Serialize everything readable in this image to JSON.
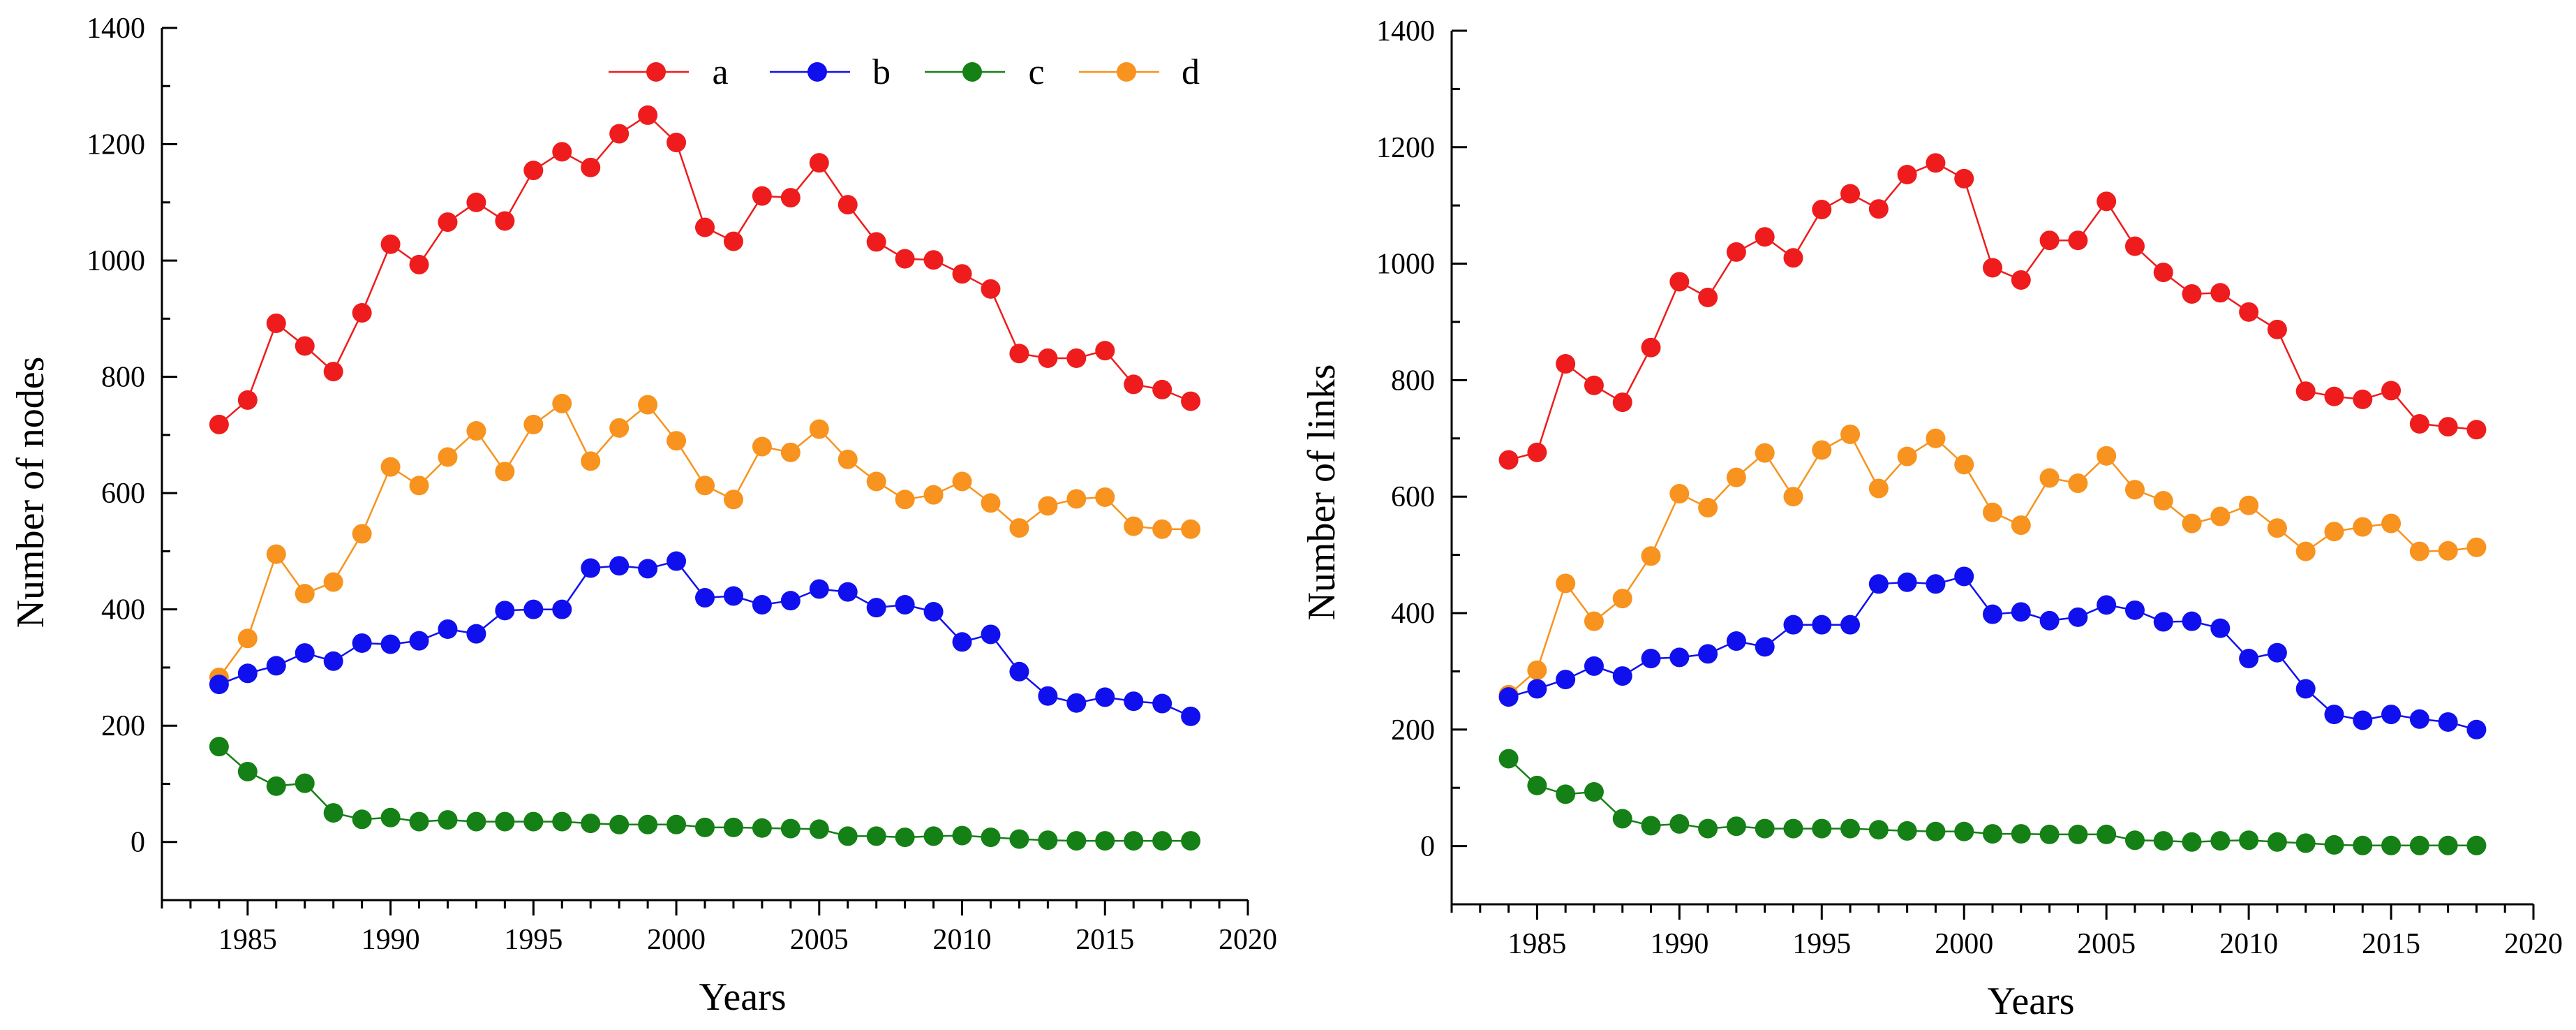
{
  "colors": {
    "a": "#ee1c1c",
    "b": "#1010ee",
    "c": "#158015",
    "d": "#f7931e",
    "axis": "#000000"
  },
  "chart_data": [
    {
      "type": "line",
      "xlabel": "Years",
      "ylabel": "Number of nodes",
      "xlim": [
        1982,
        2020
      ],
      "ylim": [
        -100,
        1400
      ],
      "xticks": [
        1985,
        1990,
        1995,
        2000,
        2005,
        2010,
        2015,
        2020
      ],
      "yticks": [
        0,
        200,
        400,
        600,
        800,
        1000,
        1200,
        1400
      ],
      "legend": {
        "position": "top-right",
        "entries": [
          "a",
          "b",
          "c",
          "d"
        ]
      },
      "x": [
        1984,
        1985,
        1986,
        1987,
        1988,
        1989,
        1990,
        1991,
        1992,
        1993,
        1994,
        1995,
        1996,
        1997,
        1998,
        1999,
        2000,
        2001,
        2002,
        2003,
        2004,
        2005,
        2006,
        2007,
        2008,
        2009,
        2010,
        2011,
        2012,
        2013,
        2014,
        2015,
        2016,
        2017,
        2018
      ],
      "series": [
        {
          "name": "a",
          "values": [
            718,
            760,
            892,
            853,
            809,
            910,
            1028,
            993,
            1066,
            1100,
            1068,
            1155,
            1187,
            1160,
            1218,
            1250,
            1203,
            1057,
            1033,
            1111,
            1108,
            1168,
            1096,
            1032,
            1003,
            1001,
            977,
            951,
            840,
            832,
            832,
            845,
            787,
            778,
            758
          ]
        },
        {
          "name": "b",
          "values": [
            271,
            290,
            303,
            325,
            311,
            342,
            340,
            346,
            366,
            358,
            398,
            400,
            400,
            471,
            475,
            470,
            483,
            420,
            423,
            408,
            415,
            435,
            430,
            403,
            408,
            396,
            344,
            357,
            293,
            251,
            239,
            249,
            242,
            238,
            216
          ]
        },
        {
          "name": "c",
          "values": [
            164,
            121,
            96,
            101,
            50,
            39,
            42,
            35,
            38,
            35,
            35,
            35,
            35,
            32,
            30,
            30,
            30,
            25,
            25,
            24,
            23,
            22,
            10,
            10,
            8,
            10,
            11,
            8,
            5,
            3,
            2,
            2,
            2,
            2,
            2
          ]
        },
        {
          "name": "d",
          "values": [
            283,
            350,
            495,
            427,
            447,
            530,
            645,
            613,
            662,
            707,
            637,
            718,
            754,
            655,
            712,
            752,
            690,
            613,
            589,
            680,
            670,
            710,
            658,
            620,
            589,
            597,
            620,
            583,
            540,
            578,
            590,
            593,
            543,
            538,
            538
          ]
        }
      ]
    },
    {
      "type": "line",
      "xlabel": "Years",
      "ylabel": "Number of links",
      "xlim": [
        1982,
        2020
      ],
      "ylim": [
        -100,
        1400
      ],
      "xticks": [
        1985,
        1990,
        1995,
        2000,
        2005,
        2010,
        2015,
        2020
      ],
      "yticks": [
        0,
        200,
        400,
        600,
        800,
        1000,
        1200,
        1400
      ],
      "x": [
        1984,
        1985,
        1986,
        1987,
        1988,
        1989,
        1990,
        1991,
        1992,
        1993,
        1994,
        1995,
        1996,
        1997,
        1998,
        1999,
        2000,
        2001,
        2002,
        2003,
        2004,
        2005,
        2006,
        2007,
        2008,
        2009,
        2010,
        2011,
        2012,
        2013,
        2014,
        2015,
        2016,
        2017,
        2018
      ],
      "series": [
        {
          "name": "a",
          "values": [
            663,
            676,
            828,
            791,
            762,
            856,
            969,
            942,
            1020,
            1046,
            1010,
            1093,
            1120,
            1094,
            1153,
            1173,
            1146,
            993,
            972,
            1040,
            1040,
            1107,
            1030,
            985,
            948,
            950,
            917,
            887,
            781,
            772,
            767,
            782,
            725,
            720,
            715
          ]
        },
        {
          "name": "b",
          "values": [
            256,
            270,
            286,
            309,
            292,
            322,
            324,
            330,
            352,
            342,
            380,
            380,
            380,
            450,
            453,
            450,
            463,
            398,
            402,
            387,
            393,
            414,
            405,
            385,
            386,
            374,
            322,
            332,
            270,
            226,
            216,
            226,
            218,
            213,
            200
          ]
        },
        {
          "name": "c",
          "values": [
            150,
            104,
            89,
            93,
            47,
            35,
            38,
            30,
            34,
            30,
            30,
            30,
            30,
            28,
            26,
            25,
            25,
            21,
            21,
            20,
            20,
            20,
            10,
            9,
            7,
            9,
            10,
            7,
            5,
            2,
            1,
            1,
            1,
            1,
            1
          ]
        },
        {
          "name": "d",
          "values": [
            260,
            302,
            451,
            386,
            425,
            498,
            605,
            581,
            633,
            675,
            600,
            680,
            707,
            614,
            669,
            700,
            655,
            573,
            551,
            632,
            623,
            670,
            612,
            593,
            554,
            566,
            585,
            546,
            506,
            540,
            548,
            554,
            506,
            507,
            513
          ]
        }
      ]
    }
  ]
}
